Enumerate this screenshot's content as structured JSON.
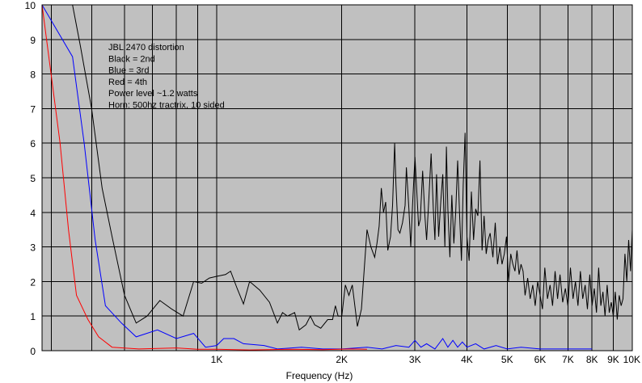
{
  "chart_data": {
    "type": "line",
    "title": "",
    "xlabel": "Frequency (Hz)",
    "ylabel": "",
    "x_scale": "log",
    "xlim": [
      380,
      10000
    ],
    "ylim": [
      0,
      10
    ],
    "grid": true,
    "x_ticks": [
      {
        "value": 1000,
        "label": "1K"
      },
      {
        "value": 2000,
        "label": "2K"
      },
      {
        "value": 3000,
        "label": "3K"
      },
      {
        "value": 4000,
        "label": "4K"
      },
      {
        "value": 5000,
        "label": "5K"
      },
      {
        "value": 6000,
        "label": "6K"
      },
      {
        "value": 7000,
        "label": "7K"
      },
      {
        "value": 8000,
        "label": "8K"
      },
      {
        "value": 9000,
        "label": "9K"
      },
      {
        "value": 10000,
        "label": "10K"
      }
    ],
    "x_minor_lines": [
      400,
      500,
      600,
      700,
      800,
      900
    ],
    "y_ticks": [
      0,
      1,
      2,
      3,
      4,
      5,
      6,
      7,
      8,
      9,
      10
    ],
    "annotation_lines": [
      "JBL 2470 distortion",
      "Black = 2nd",
      "Blue = 3rd",
      "Red = 4th",
      "Power level ~1.2 watts",
      "Horn: 500hz tractrix, 10 sided"
    ],
    "series": [
      {
        "color": "#000000",
        "points": [
          [
            380,
            10
          ],
          [
            450,
            10
          ],
          [
            470,
            8.8
          ],
          [
            500,
            7.0
          ],
          [
            530,
            4.7
          ],
          [
            560,
            3.3
          ],
          [
            600,
            1.6
          ],
          [
            640,
            0.8
          ],
          [
            680,
            1.0
          ],
          [
            730,
            1.45
          ],
          [
            780,
            1.2
          ],
          [
            830,
            1.0
          ],
          [
            880,
            2.0
          ],
          [
            920,
            1.95
          ],
          [
            960,
            2.1
          ],
          [
            1000,
            2.15
          ],
          [
            1050,
            2.2
          ],
          [
            1080,
            2.3
          ],
          [
            1120,
            1.8
          ],
          [
            1160,
            1.35
          ],
          [
            1200,
            2.0
          ],
          [
            1270,
            1.75
          ],
          [
            1340,
            1.4
          ],
          [
            1400,
            0.8
          ],
          [
            1440,
            1.1
          ],
          [
            1480,
            1.0
          ],
          [
            1540,
            1.1
          ],
          [
            1580,
            0.6
          ],
          [
            1640,
            0.75
          ],
          [
            1680,
            1.0
          ],
          [
            1720,
            0.75
          ],
          [
            1780,
            0.65
          ],
          [
            1850,
            0.9
          ],
          [
            1900,
            0.9
          ],
          [
            1930,
            1.3
          ],
          [
            1960,
            1.0
          ],
          [
            2000,
            1.0
          ],
          [
            2040,
            1.9
          ],
          [
            2080,
            1.6
          ],
          [
            2120,
            1.9
          ],
          [
            2180,
            0.7
          ],
          [
            2230,
            1.2
          ],
          [
            2300,
            3.5
          ],
          [
            2350,
            3.0
          ],
          [
            2400,
            2.7
          ],
          [
            2430,
            3.1
          ],
          [
            2460,
            3.6
          ],
          [
            2490,
            4.7
          ],
          [
            2520,
            4.0
          ],
          [
            2550,
            4.3
          ],
          [
            2580,
            2.9
          ],
          [
            2620,
            3.3
          ],
          [
            2650,
            4.2
          ],
          [
            2680,
            6.0
          ],
          [
            2700,
            4.8
          ],
          [
            2730,
            3.5
          ],
          [
            2760,
            3.4
          ],
          [
            2800,
            3.7
          ],
          [
            2840,
            4.2
          ],
          [
            2860,
            5.3
          ],
          [
            2900,
            4.1
          ],
          [
            2930,
            3.0
          ],
          [
            2960,
            4.2
          ],
          [
            3000,
            5.6
          ],
          [
            3030,
            4.6
          ],
          [
            3060,
            3.6
          ],
          [
            3090,
            3.8
          ],
          [
            3130,
            5.2
          ],
          [
            3170,
            3.9
          ],
          [
            3200,
            3.2
          ],
          [
            3240,
            4.4
          ],
          [
            3280,
            5.7
          ],
          [
            3320,
            4.1
          ],
          [
            3350,
            3.2
          ],
          [
            3380,
            5.1
          ],
          [
            3420,
            3.3
          ],
          [
            3460,
            4.3
          ],
          [
            3500,
            5.1
          ],
          [
            3540,
            3.0
          ],
          [
            3570,
            5.9
          ],
          [
            3600,
            4.1
          ],
          [
            3640,
            2.7
          ],
          [
            3680,
            4.5
          ],
          [
            3720,
            3.1
          ],
          [
            3760,
            4.0
          ],
          [
            3800,
            5.5
          ],
          [
            3840,
            4.0
          ],
          [
            3880,
            2.6
          ],
          [
            3920,
            4.8
          ],
          [
            3960,
            6.3
          ],
          [
            4000,
            3.3
          ],
          [
            4050,
            2.6
          ],
          [
            4100,
            4.6
          ],
          [
            4150,
            3.2
          ],
          [
            4200,
            4.1
          ],
          [
            4250,
            3.9
          ],
          [
            4300,
            5.5
          ],
          [
            4350,
            2.9
          ],
          [
            4400,
            3.9
          ],
          [
            4450,
            2.8
          ],
          [
            4500,
            3.2
          ],
          [
            4550,
            3.4
          ],
          [
            4620,
            2.7
          ],
          [
            4680,
            3.7
          ],
          [
            4740,
            2.5
          ],
          [
            4800,
            3.0
          ],
          [
            4860,
            2.5
          ],
          [
            4920,
            2.8
          ],
          [
            4980,
            3.3
          ],
          [
            5040,
            2.0
          ],
          [
            5100,
            2.8
          ],
          [
            5160,
            2.5
          ],
          [
            5220,
            2.3
          ],
          [
            5280,
            2.9
          ],
          [
            5340,
            2.2
          ],
          [
            5400,
            2.5
          ],
          [
            5460,
            2.3
          ],
          [
            5520,
            1.6
          ],
          [
            5600,
            2.1
          ],
          [
            5680,
            1.5
          ],
          [
            5760,
            1.9
          ],
          [
            5840,
            1.3
          ],
          [
            5920,
            2.0
          ],
          [
            6000,
            1.6
          ],
          [
            6080,
            1.2
          ],
          [
            6160,
            2.4
          ],
          [
            6250,
            1.5
          ],
          [
            6340,
            1.9
          ],
          [
            6430,
            1.3
          ],
          [
            6520,
            2.3
          ],
          [
            6610,
            1.5
          ],
          [
            6700,
            2.2
          ],
          [
            6800,
            1.4
          ],
          [
            6900,
            1.8
          ],
          [
            7000,
            1.3
          ],
          [
            7100,
            2.4
          ],
          [
            7200,
            1.5
          ],
          [
            7300,
            2.0
          ],
          [
            7400,
            1.3
          ],
          [
            7500,
            2.3
          ],
          [
            7600,
            1.5
          ],
          [
            7700,
            1.9
          ],
          [
            7800,
            1.2
          ],
          [
            7900,
            2.2
          ],
          [
            8000,
            1.3
          ],
          [
            8100,
            1.8
          ],
          [
            8200,
            1.1
          ],
          [
            8300,
            2.4
          ],
          [
            8400,
            1.3
          ],
          [
            8500,
            1.7
          ],
          [
            8600,
            1.0
          ],
          [
            8700,
            1.9
          ],
          [
            8800,
            1.1
          ],
          [
            8900,
            1.4
          ],
          [
            9000,
            1.0
          ],
          [
            9100,
            1.7
          ],
          [
            9200,
            0.9
          ],
          [
            9300,
            1.6
          ],
          [
            9400,
            1.3
          ],
          [
            9500,
            1.5
          ],
          [
            9600,
            2.8
          ],
          [
            9700,
            2.0
          ],
          [
            9800,
            3.2
          ],
          [
            9900,
            2.3
          ],
          [
            10000,
            3.5
          ]
        ]
      },
      {
        "color": "#0000ff",
        "points": [
          [
            380,
            10
          ],
          [
            450,
            8.5
          ],
          [
            480,
            6.0
          ],
          [
            510,
            3.2
          ],
          [
            540,
            1.3
          ],
          [
            590,
            0.8
          ],
          [
            640,
            0.4
          ],
          [
            720,
            0.6
          ],
          [
            800,
            0.35
          ],
          [
            880,
            0.5
          ],
          [
            940,
            0.1
          ],
          [
            1000,
            0.15
          ],
          [
            1040,
            0.35
          ],
          [
            1100,
            0.35
          ],
          [
            1160,
            0.2
          ],
          [
            1300,
            0.15
          ],
          [
            1400,
            0.05
          ],
          [
            1600,
            0.1
          ],
          [
            1800,
            0.05
          ],
          [
            2000,
            0.05
          ],
          [
            2300,
            0.1
          ],
          [
            2500,
            0.05
          ],
          [
            2700,
            0.15
          ],
          [
            2900,
            0.1
          ],
          [
            3000,
            0.3
          ],
          [
            3100,
            0.1
          ],
          [
            3200,
            0.2
          ],
          [
            3350,
            0.05
          ],
          [
            3500,
            0.35
          ],
          [
            3600,
            0.1
          ],
          [
            3700,
            0.3
          ],
          [
            3800,
            0.1
          ],
          [
            3900,
            0.25
          ],
          [
            4000,
            0.1
          ],
          [
            4200,
            0.2
          ],
          [
            4400,
            0.05
          ],
          [
            4700,
            0.15
          ],
          [
            5000,
            0.05
          ],
          [
            5400,
            0.1
          ],
          [
            6000,
            0.05
          ],
          [
            7000,
            0.05
          ],
          [
            8000,
            0.05
          ]
        ]
      },
      {
        "color": "#ff0000",
        "points": [
          [
            380,
            10
          ],
          [
            420,
            6.0
          ],
          [
            440,
            3.5
          ],
          [
            460,
            1.6
          ],
          [
            490,
            0.9
          ],
          [
            520,
            0.4
          ],
          [
            560,
            0.1
          ],
          [
            650,
            0.05
          ],
          [
            800,
            0.08
          ],
          [
            900,
            0.04
          ],
          [
            1000,
            0.04
          ],
          [
            1200,
            0.02
          ],
          [
            1500,
            0.04
          ],
          [
            1800,
            0.03
          ],
          [
            2100,
            0.05
          ],
          [
            2300,
            0.04
          ]
        ]
      }
    ]
  }
}
